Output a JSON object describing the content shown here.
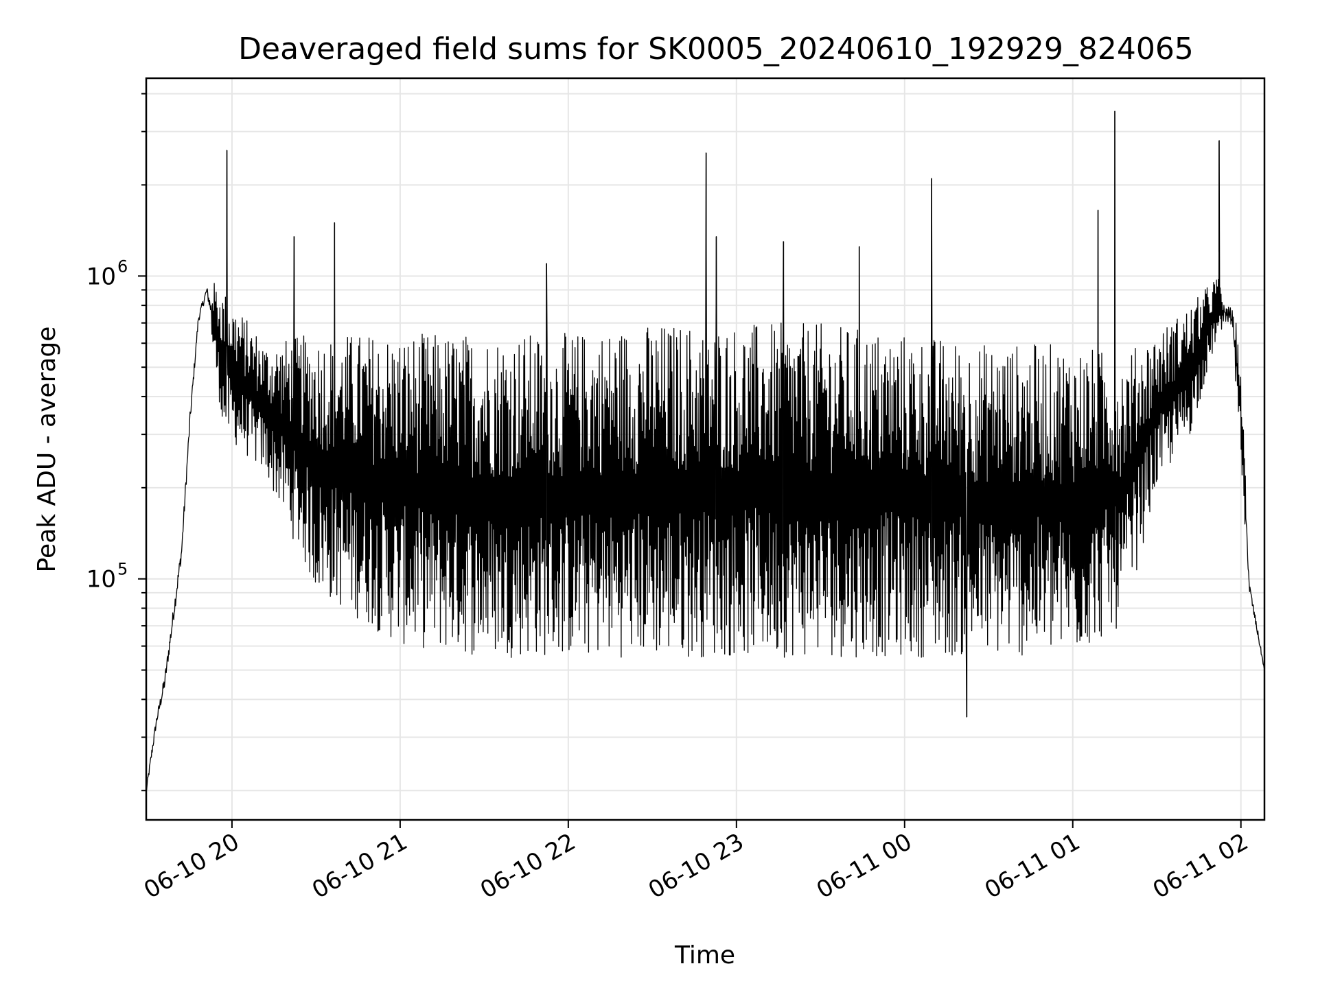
{
  "chart_data": {
    "type": "line",
    "title": "Deaveraged field sums for SK0005_20240610_192929_824065",
    "xlabel": "Time",
    "ylabel": "Peak ADU - average",
    "yscale": "log",
    "ylim": [
      16000,
      4500000
    ],
    "xlim_hours": [
      19.49,
      26.14
    ],
    "grid": true,
    "x_ticks": [
      {
        "label": "06-10 20",
        "hour": 20
      },
      {
        "label": "06-10 21",
        "hour": 21
      },
      {
        "label": "06-10 22",
        "hour": 22
      },
      {
        "label": "06-10 23",
        "hour": 23
      },
      {
        "label": "06-11 00",
        "hour": 24
      },
      {
        "label": "06-11 01",
        "hour": 25
      },
      {
        "label": "06-11 02",
        "hour": 26
      }
    ],
    "y_ticks": [
      {
        "base": "10",
        "exp": "5",
        "value": 100000
      },
      {
        "base": "10",
        "exp": "6",
        "value": 1000000
      }
    ],
    "series": [
      {
        "name": "deaveraged field sum",
        "color": "#000000",
        "envelope": [
          {
            "hour": 19.49,
            "low": 18000,
            "high": 22000
          },
          {
            "hour": 19.55,
            "low": 30000,
            "high": 38000
          },
          {
            "hour": 19.6,
            "low": 38000,
            "high": 55000
          },
          {
            "hour": 19.7,
            "low": 100000,
            "high": 150000
          },
          {
            "hour": 19.75,
            "low": 280000,
            "high": 400000
          },
          {
            "hour": 19.8,
            "low": 650000,
            "high": 800000
          },
          {
            "hour": 19.85,
            "low": 800000,
            "high": 1000000
          },
          {
            "hour": 19.95,
            "low": 300000,
            "high": 900000
          },
          {
            "hour": 20.2,
            "low": 220000,
            "high": 600000
          },
          {
            "hour": 20.5,
            "low": 90000,
            "high": 650000
          },
          {
            "hour": 21.0,
            "low": 60000,
            "high": 650000
          },
          {
            "hour": 21.5,
            "low": 55000,
            "high": 650000
          },
          {
            "hour": 22.0,
            "low": 55000,
            "high": 650000
          },
          {
            "hour": 22.5,
            "low": 55000,
            "high": 700000
          },
          {
            "hour": 23.0,
            "low": 55000,
            "high": 700000
          },
          {
            "hour": 23.5,
            "low": 55000,
            "high": 700000
          },
          {
            "hour": 24.0,
            "low": 55000,
            "high": 650000
          },
          {
            "hour": 24.5,
            "low": 55000,
            "high": 600000
          },
          {
            "hour": 25.0,
            "low": 55000,
            "high": 600000
          },
          {
            "hour": 25.3,
            "low": 70000,
            "high": 550000
          },
          {
            "hour": 25.5,
            "low": 200000,
            "high": 650000
          },
          {
            "hour": 25.7,
            "low": 300000,
            "high": 800000
          },
          {
            "hour": 25.85,
            "low": 600000,
            "high": 1000000
          },
          {
            "hour": 25.95,
            "low": 600000,
            "high": 900000
          },
          {
            "hour": 26.0,
            "low": 250000,
            "high": 500000
          },
          {
            "hour": 26.05,
            "low": 80000,
            "high": 110000
          },
          {
            "hour": 26.14,
            "low": 48000,
            "high": 52000
          }
        ],
        "spikes": [
          {
            "hour": 19.97,
            "value": 2600000
          },
          {
            "hour": 20.37,
            "value": 1350000
          },
          {
            "hour": 20.61,
            "value": 1500000
          },
          {
            "hour": 21.87,
            "value": 1100000
          },
          {
            "hour": 22.82,
            "value": 2550000
          },
          {
            "hour": 22.88,
            "value": 1350000
          },
          {
            "hour": 23.28,
            "value": 1300000
          },
          {
            "hour": 23.73,
            "value": 1250000
          },
          {
            "hour": 24.16,
            "value": 2100000
          },
          {
            "hour": 24.37,
            "value": 35000
          },
          {
            "hour": 25.15,
            "value": 1650000
          },
          {
            "hour": 25.25,
            "value": 3500000
          },
          {
            "hour": 25.87,
            "value": 2800000
          }
        ]
      }
    ]
  }
}
